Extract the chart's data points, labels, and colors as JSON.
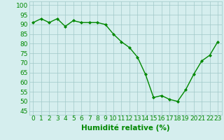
{
  "x": [
    0,
    1,
    2,
    3,
    4,
    5,
    6,
    7,
    8,
    9,
    10,
    11,
    12,
    13,
    14,
    15,
    16,
    17,
    18,
    19,
    20,
    21,
    22,
    23
  ],
  "y": [
    91,
    93,
    91,
    93,
    89,
    92,
    91,
    91,
    91,
    90,
    85,
    81,
    78,
    73,
    64,
    52,
    53,
    51,
    50,
    56,
    64,
    71,
    74,
    81
  ],
  "line_color": "#008800",
  "marker": "D",
  "marker_size": 2.0,
  "bg_color": "#d5eeee",
  "grid_color": "#a0c8c8",
  "xlabel": "Humidité relative (%)",
  "xlabel_color": "#008800",
  "xlabel_fontsize": 7.5,
  "ylabel_ticks": [
    45,
    50,
    55,
    60,
    65,
    70,
    75,
    80,
    85,
    90,
    95,
    100
  ],
  "ylim": [
    43,
    102
  ],
  "xlim": [
    -0.5,
    23.5
  ],
  "tick_fontsize": 6.5,
  "tick_color": "#008800",
  "line_width": 1.0
}
